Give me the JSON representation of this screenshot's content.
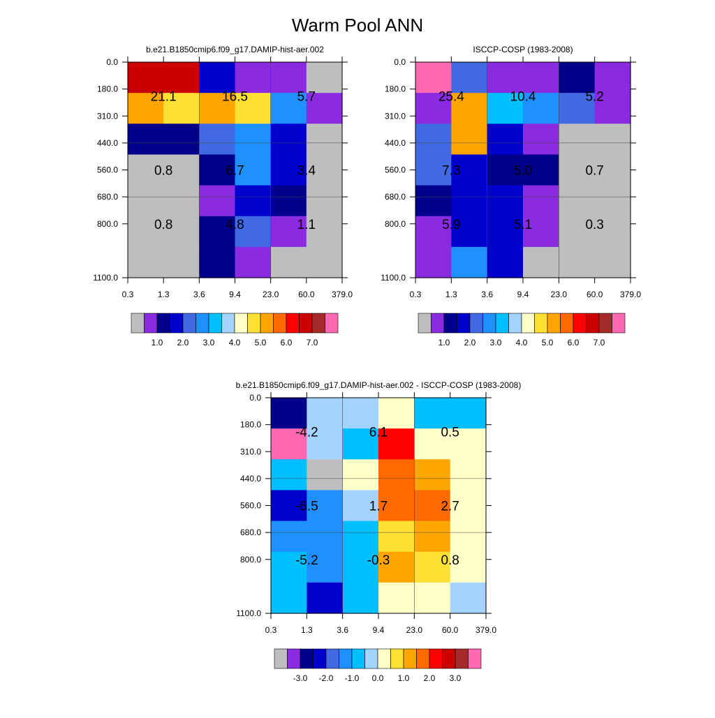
{
  "title": "Warm Pool ANN",
  "palette": [
    "#bebebe",
    "#8a2be2",
    "#00008b",
    "#0000cd",
    "#4169e1",
    "#1e90ff",
    "#00bfff",
    "#a4d3ff",
    "#ffffc8",
    "#ffe135",
    "#ffa500",
    "#ff6a00",
    "#ff0000",
    "#cd0000",
    "#a52a2a",
    "#ff69b4"
  ],
  "chart_data": [
    {
      "type": "heatmap",
      "title": "b.e21.B1850cmip6.f09_g17.DAMIP-hist-aer.002",
      "x_ticks": [
        "0.3",
        "1.3",
        "3.6",
        "9.4",
        "23.0",
        "60.0",
        "379.0"
      ],
      "y_ticks": [
        "0.0",
        "180.0",
        "310.0",
        "440.0",
        "560.0",
        "680.0",
        "800.0",
        "1100.0"
      ],
      "cell_colors": [
        [
          13,
          13,
          3,
          1,
          1,
          0
        ],
        [
          10,
          9,
          10,
          9,
          5,
          1
        ],
        [
          2,
          2,
          4,
          5,
          3,
          0
        ],
        [
          0,
          0,
          2,
          5,
          3,
          0
        ],
        [
          0,
          0,
          1,
          3,
          2,
          0
        ],
        [
          0,
          0,
          2,
          4,
          1,
          0
        ],
        [
          0,
          0,
          2,
          1,
          0,
          0
        ]
      ],
      "annotations": [
        {
          "row_block": 0,
          "col_block": 0,
          "text": "21.1"
        },
        {
          "row_block": 0,
          "col_block": 1,
          "text": "16.5"
        },
        {
          "row_block": 0,
          "col_block": 2,
          "text": "5.7"
        },
        {
          "row_block": 1,
          "col_block": 0,
          "text": "0.8"
        },
        {
          "row_block": 1,
          "col_block": 1,
          "text": "6.7"
        },
        {
          "row_block": 1,
          "col_block": 2,
          "text": "3.4"
        },
        {
          "row_block": 2,
          "col_block": 0,
          "text": "0.8"
        },
        {
          "row_block": 2,
          "col_block": 1,
          "text": "4.8"
        },
        {
          "row_block": 2,
          "col_block": 2,
          "text": "1.1"
        }
      ],
      "colorbar": {
        "labels": [
          "1.0",
          "2.0",
          "3.0",
          "4.0",
          "5.0",
          "6.0",
          "7.0"
        ]
      }
    },
    {
      "type": "heatmap",
      "title": "ISCCP-COSP (1983-2008)",
      "x_ticks": [
        "0.3",
        "1.3",
        "3.6",
        "9.4",
        "23.0",
        "60.0",
        "379.0"
      ],
      "y_ticks": [
        "0.0",
        "180.0",
        "310.0",
        "440.0",
        "560.0",
        "680.0",
        "800.0",
        "1100.0"
      ],
      "cell_colors": [
        [
          15,
          4,
          1,
          1,
          2,
          1
        ],
        [
          1,
          10,
          6,
          5,
          4,
          1
        ],
        [
          4,
          10,
          3,
          1,
          0,
          0
        ],
        [
          4,
          3,
          2,
          2,
          0,
          0
        ],
        [
          2,
          3,
          3,
          1,
          0,
          0
        ],
        [
          1,
          3,
          3,
          1,
          0,
          0
        ],
        [
          1,
          5,
          3,
          0,
          0,
          0
        ]
      ],
      "annotations": [
        {
          "row_block": 0,
          "col_block": 0,
          "text": "25.4"
        },
        {
          "row_block": 0,
          "col_block": 1,
          "text": "10.4"
        },
        {
          "row_block": 0,
          "col_block": 2,
          "text": "5.2"
        },
        {
          "row_block": 1,
          "col_block": 0,
          "text": "7.3"
        },
        {
          "row_block": 1,
          "col_block": 1,
          "text": "5.0"
        },
        {
          "row_block": 1,
          "col_block": 2,
          "text": "0.7"
        },
        {
          "row_block": 2,
          "col_block": 0,
          "text": "5.9"
        },
        {
          "row_block": 2,
          "col_block": 1,
          "text": "5.1"
        },
        {
          "row_block": 2,
          "col_block": 2,
          "text": "0.3"
        }
      ],
      "colorbar": {
        "labels": [
          "1.0",
          "2.0",
          "3.0",
          "4.0",
          "5.0",
          "6.0",
          "7.0"
        ]
      }
    },
    {
      "type": "heatmap",
      "title": "b.e21.B1850cmip6.f09_g17.DAMIP-hist-aer.002 - ISCCP-COSP (1983-2008)",
      "x_ticks": [
        "0.3",
        "1.3",
        "3.6",
        "9.4",
        "23.0",
        "60.0",
        "379.0"
      ],
      "y_ticks": [
        "0.0",
        "180.0",
        "310.0",
        "440.0",
        "560.0",
        "680.0",
        "800.0",
        "1100.0"
      ],
      "cell_colors": [
        [
          2,
          7,
          7,
          8,
          6,
          6
        ],
        [
          15,
          7,
          6,
          12,
          8,
          8
        ],
        [
          6,
          0,
          8,
          11,
          10,
          8
        ],
        [
          3,
          5,
          7,
          11,
          11,
          8
        ],
        [
          5,
          5,
          6,
          9,
          10,
          8
        ],
        [
          6,
          5,
          6,
          10,
          9,
          8
        ],
        [
          6,
          3,
          6,
          8,
          8,
          7
        ]
      ],
      "annotations": [
        {
          "row_block": 0,
          "col_block": 0,
          "text": "-4.2"
        },
        {
          "row_block": 0,
          "col_block": 1,
          "text": "6.1"
        },
        {
          "row_block": 0,
          "col_block": 2,
          "text": "0.5"
        },
        {
          "row_block": 1,
          "col_block": 0,
          "text": "-6.5"
        },
        {
          "row_block": 1,
          "col_block": 1,
          "text": "1.7"
        },
        {
          "row_block": 1,
          "col_block": 2,
          "text": "2.7"
        },
        {
          "row_block": 2,
          "col_block": 0,
          "text": "-5.2"
        },
        {
          "row_block": 2,
          "col_block": 1,
          "text": "-0.3"
        },
        {
          "row_block": 2,
          "col_block": 2,
          "text": "0.8"
        }
      ],
      "colorbar": {
        "labels": [
          "-3.0",
          "-2.0",
          "-1.0",
          "0.0",
          "1.0",
          "2.0",
          "3.0"
        ]
      }
    }
  ]
}
